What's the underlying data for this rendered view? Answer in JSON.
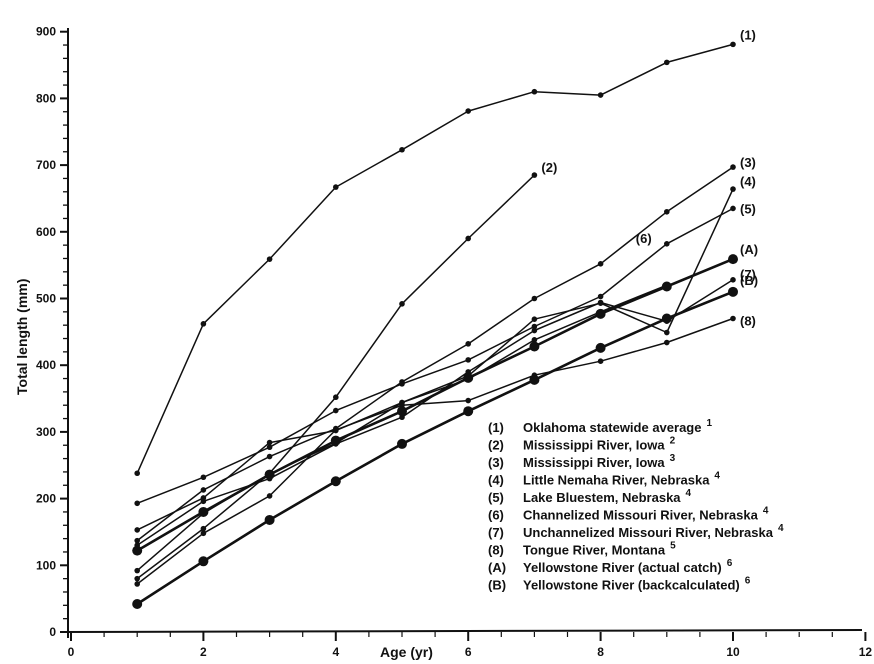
{
  "chart_data": {
    "type": "line",
    "title": "",
    "xlabel": "Age (yr)",
    "ylabel": "Total length (mm)",
    "xlim": [
      0,
      12
    ],
    "ylim": [
      0,
      900
    ],
    "xticks": [
      "0",
      "2",
      "4",
      "6",
      "8",
      "10",
      "12"
    ],
    "yticks": [
      "0",
      "100",
      "200",
      "300",
      "400",
      "500",
      "600",
      "700",
      "800",
      "900"
    ],
    "grid": false,
    "legend_position": "bottom-right",
    "series": [
      {
        "label": "(1)",
        "legend": "Oklahoma statewide average",
        "sup": "1",
        "marker": "small",
        "x": [
          1,
          2,
          3,
          4,
          5,
          6,
          7,
          8,
          9,
          10
        ],
        "y": [
          238,
          462,
          559,
          667,
          723,
          781,
          810,
          805,
          854,
          881
        ]
      },
      {
        "label": "(2)",
        "legend": "Mississippi River, Iowa",
        "sup": "2",
        "marker": "small",
        "x": [
          1,
          2,
          3,
          4,
          5,
          6,
          7
        ],
        "y": [
          80,
          155,
          238,
          352,
          492,
          590,
          685
        ]
      },
      {
        "label": "(3)",
        "legend": "Mississippi River, Iowa",
        "sup": "3",
        "marker": "small",
        "x": [
          1,
          2,
          3,
          4,
          5,
          6,
          7,
          8,
          9,
          10
        ],
        "y": [
          137,
          213,
          263,
          305,
          375,
          432,
          500,
          552,
          630,
          697
        ]
      },
      {
        "label": "(4)",
        "legend": "Little Nemaha River, Nebraska",
        "sup": "4",
        "marker": "small",
        "x": [
          1,
          2,
          3,
          4,
          5,
          6,
          7,
          8,
          9,
          10
        ],
        "y": [
          92,
          178,
          237,
          283,
          344,
          384,
          469,
          493,
          449,
          664
        ]
      },
      {
        "label": "(5)",
        "legend": "Lake Bluestem, Nebraska",
        "sup": "4",
        "marker": "small",
        "x": [
          1,
          2,
          3,
          4,
          5,
          6,
          7,
          8,
          9,
          10
        ],
        "y": [
          193,
          232,
          277,
          332,
          372,
          408,
          458,
          503,
          582,
          635
        ]
      },
      {
        "label": "(6)",
        "legend": "Channelized Missouri River, Nebraska",
        "sup": "4",
        "marker": "small",
        "x": [
          1,
          2,
          3,
          4,
          5,
          6,
          7,
          8,
          9
        ],
        "y": [
          153,
          201,
          284,
          302,
          344,
          379,
          438,
          480,
          520
        ]
      },
      {
        "label": "(7)",
        "legend": "Unchannelized Missouri River, Nebraska",
        "sup": "4",
        "marker": "small",
        "x": [
          1,
          2,
          3,
          4,
          5,
          6,
          7,
          8,
          9,
          10
        ],
        "y": [
          130,
          196,
          230,
          282,
          322,
          390,
          452,
          494,
          466,
          528
        ]
      },
      {
        "label": "(8)",
        "legend": "Tongue River, Montana",
        "sup": "5",
        "marker": "small",
        "x": [
          1,
          2,
          3,
          4,
          5,
          6,
          7,
          8,
          9,
          10
        ],
        "y": [
          72,
          148,
          204,
          303,
          340,
          347,
          385,
          406,
          434,
          470
        ]
      },
      {
        "label": "(A)",
        "legend": "Yellowstone River (actual catch)",
        "sup": "6",
        "marker": "large",
        "x": [
          1,
          2,
          3,
          4,
          5,
          6,
          7,
          8,
          9,
          10
        ],
        "y": [
          122,
          180,
          236,
          287,
          331,
          381,
          428,
          477,
          518,
          559
        ]
      },
      {
        "label": "(B)",
        "legend": "Yellowstone River (backcalculated)",
        "sup": "6",
        "marker": "large",
        "x": [
          1,
          2,
          3,
          4,
          5,
          6,
          7,
          8,
          9,
          10
        ],
        "y": [
          42,
          106,
          168,
          226,
          282,
          331,
          378,
          426,
          470,
          510
        ]
      }
    ]
  }
}
